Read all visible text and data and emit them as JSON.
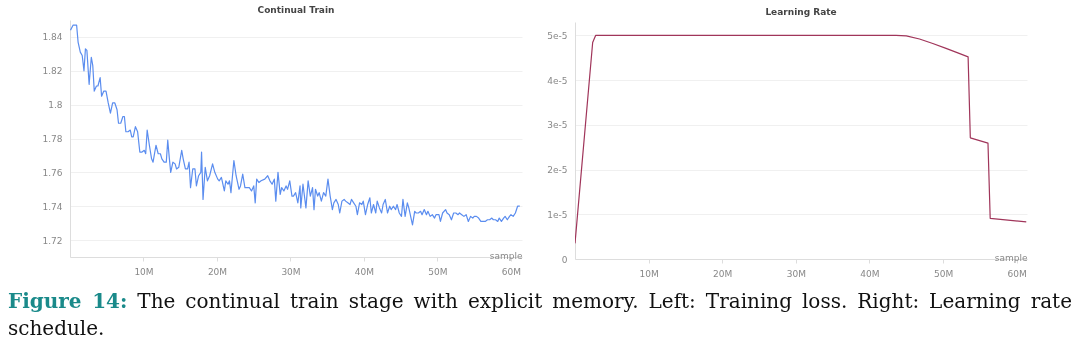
{
  "chart_data": [
    {
      "type": "line",
      "title": "Continual Train",
      "xlabel": "sample",
      "grid": "y",
      "annotations": [
        "Figure 14: The continual train stage with explicit memory. Left: Training loss. Right: Learning rate schedule."
      ],
      "xlim": [
        0,
        61.5
      ],
      "xticks": [
        {
          "value": 10,
          "label": "10M"
        },
        {
          "value": 20,
          "label": "20M"
        },
        {
          "value": 30,
          "label": "30M"
        },
        {
          "value": 40,
          "label": "40M"
        },
        {
          "value": 50,
          "label": "50M"
        },
        {
          "value": 60,
          "label": "60M"
        }
      ],
      "ylim": [
        1.71,
        1.85
      ],
      "yticks": [
        1.72,
        1.74,
        1.76,
        1.78,
        1.8,
        1.82,
        1.84
      ],
      "series": [
        {
          "color": "#5b8def",
          "x": [
            0.07,
            0.43,
            0.9,
            1.1,
            1.4,
            1.66,
            1.9,
            2.1,
            2.3,
            2.6,
            2.9,
            3.1,
            3.3,
            3.6,
            3.8,
            4.1,
            4.3,
            4.6,
            4.9,
            5.2,
            5.5,
            5.8,
            6.1,
            6.4,
            6.6,
            6.9,
            7.2,
            7.4,
            7.6,
            7.9,
            8.2,
            8.4,
            8.6,
            8.9,
            9.2,
            9.5,
            9.8,
            10.1,
            10.3,
            10.5,
            10.8,
            11.1,
            11.3,
            11.7,
            12.0,
            12.3,
            12.5,
            12.8,
            13.1,
            13.3,
            13.5,
            13.7,
            14.0,
            14.3,
            14.5,
            14.8,
            15.2,
            15.4,
            15.7,
            16.0,
            16.2,
            16.4,
            16.7,
            17.0,
            17.2,
            17.5,
            17.8,
            17.9,
            18.1,
            18.4,
            18.7,
            19.0,
            19.4,
            19.7,
            20.1,
            20.3,
            20.6,
            21.0,
            21.2,
            21.5,
            21.7,
            21.9,
            22.3,
            22.6,
            23.0,
            23.2,
            23.5,
            23.8,
            24.2,
            24.4,
            24.7,
            25.0,
            25.2,
            25.4,
            25.7,
            26.0,
            26.5,
            26.9,
            27.2,
            27.5,
            27.8,
            28.0,
            28.3,
            28.6,
            28.8,
            29.1,
            29.4,
            29.6,
            29.9,
            30.2,
            30.4,
            30.7,
            31.0,
            31.3,
            31.4,
            31.7,
            32.1,
            32.4,
            32.7,
            33.0,
            33.2,
            33.4,
            33.7,
            33.9,
            34.2,
            34.5,
            34.8,
            35.1,
            35.4,
            35.7,
            35.9,
            36.2,
            36.5,
            36.7,
            37.0,
            37.3,
            37.5,
            37.8,
            38.1,
            38.3,
            38.6,
            38.9,
            39.1,
            39.4,
            39.7,
            39.9,
            40.2,
            40.5,
            40.8,
            41.0,
            41.3,
            41.6,
            41.8,
            42.1,
            42.4,
            42.6,
            42.9,
            43.2,
            43.5,
            43.7,
            44.0,
            44.3,
            44.5,
            44.8,
            45.1,
            45.3,
            45.6,
            45.9,
            46.1,
            46.4,
            46.6,
            46.9,
            47.1,
            47.4,
            47.7,
            47.9,
            48.2,
            48.5,
            48.7,
            49.0,
            49.3,
            49.6,
            49.8,
            50.2,
            50.4,
            50.7,
            51.1,
            51.3,
            51.6,
            51.9,
            52.2,
            52.5,
            52.8,
            53.0,
            53.3,
            53.6,
            53.9,
            54.2,
            54.5,
            54.8,
            55.0,
            55.3,
            55.6,
            55.9,
            56.1,
            56.5,
            56.8,
            57.1,
            57.4,
            57.6,
            57.9,
            58.2,
            58.4,
            58.7,
            59.0,
            59.2,
            59.5,
            59.8,
            60.0,
            60.3,
            60.6,
            60.9,
            61.2
          ],
          "values": [
            1.844,
            1.847,
            1.847,
            1.837,
            1.831,
            1.829,
            1.82,
            1.833,
            1.832,
            1.812,
            1.828,
            1.823,
            1.808,
            1.811,
            1.811,
            1.816,
            1.805,
            1.808,
            1.808,
            1.801,
            1.795,
            1.801,
            1.801,
            1.797,
            1.789,
            1.789,
            1.793,
            1.793,
            1.784,
            1.784,
            1.785,
            1.781,
            1.781,
            1.787,
            1.784,
            1.772,
            1.772,
            1.773,
            1.771,
            1.785,
            1.776,
            1.768,
            1.766,
            1.776,
            1.771,
            1.771,
            1.768,
            1.766,
            1.766,
            1.779,
            1.769,
            1.76,
            1.766,
            1.765,
            1.762,
            1.763,
            1.773,
            1.768,
            1.762,
            1.762,
            1.766,
            1.751,
            1.762,
            1.762,
            1.752,
            1.758,
            1.76,
            1.772,
            1.744,
            1.763,
            1.755,
            1.758,
            1.765,
            1.76,
            1.756,
            1.755,
            1.757,
            1.749,
            1.755,
            1.753,
            1.755,
            1.748,
            1.767,
            1.758,
            1.75,
            1.752,
            1.759,
            1.751,
            1.751,
            1.751,
            1.749,
            1.752,
            1.742,
            1.756,
            1.754,
            1.755,
            1.756,
            1.758,
            1.755,
            1.753,
            1.756,
            1.743,
            1.76,
            1.747,
            1.751,
            1.749,
            1.752,
            1.75,
            1.755,
            1.746,
            1.746,
            1.748,
            1.742,
            1.752,
            1.739,
            1.753,
            1.739,
            1.755,
            1.746,
            1.751,
            1.738,
            1.75,
            1.746,
            1.748,
            1.743,
            1.748,
            1.746,
            1.756,
            1.746,
            1.738,
            1.742,
            1.744,
            1.741,
            1.736,
            1.743,
            1.744,
            1.743,
            1.742,
            1.741,
            1.744,
            1.742,
            1.74,
            1.735,
            1.742,
            1.741,
            1.743,
            1.735,
            1.741,
            1.745,
            1.736,
            1.741,
            1.736,
            1.743,
            1.739,
            1.736,
            1.741,
            1.744,
            1.736,
            1.74,
            1.738,
            1.74,
            1.738,
            1.741,
            1.736,
            1.734,
            1.744,
            1.734,
            1.742,
            1.739,
            1.733,
            1.729,
            1.737,
            1.736,
            1.736,
            1.737,
            1.735,
            1.738,
            1.735,
            1.737,
            1.734,
            1.735,
            1.733,
            1.735,
            1.735,
            1.731,
            1.736,
            1.738,
            1.736,
            1.735,
            1.732,
            1.736,
            1.736,
            1.735,
            1.736,
            1.735,
            1.734,
            1.735,
            1.731,
            1.734,
            1.733,
            1.734,
            1.734,
            1.733,
            1.731,
            1.731,
            1.731,
            1.732,
            1.732,
            1.733,
            1.732,
            1.732,
            1.731,
            1.733,
            1.731,
            1.733,
            1.734,
            1.732,
            1.734,
            1.735,
            1.734,
            1.736,
            1.74,
            1.74
          ]
        }
      ]
    },
    {
      "type": "line",
      "title": "Learning Rate",
      "xlabel": "sample",
      "grid": "y",
      "xlim": [
        0,
        61.4
      ],
      "xticks": [
        {
          "value": 10,
          "label": "10M"
        },
        {
          "value": 20,
          "label": "20M"
        },
        {
          "value": 30,
          "label": "30M"
        },
        {
          "value": 40,
          "label": "40M"
        },
        {
          "value": 50,
          "label": "50M"
        },
        {
          "value": 60,
          "label": "60M"
        }
      ],
      "ylim": [
        0,
        5.3e-05
      ],
      "yticks": [
        0,
        {
          "value": 1e-05,
          "label": "1e-5"
        },
        {
          "value": 2e-05,
          "label": "2e-5"
        },
        {
          "value": 3e-05,
          "label": "3e-5"
        },
        {
          "value": 4e-05,
          "label": "4e-5"
        },
        {
          "value": 5e-05,
          "label": "5e-5"
        }
      ],
      "series": [
        {
          "color": "#a0355a",
          "x": [
            0,
            2.4,
            2.8,
            43.6,
            45.0,
            46.8,
            48.6,
            50.4,
            52.0,
            53.4,
            53.7,
            56.1,
            56.4,
            61.3
          ],
          "values": [
            3.5e-06,
            4.84e-05,
            5e-05,
            5e-05,
            4.99e-05,
            4.92e-05,
            4.82e-05,
            4.71e-05,
            4.61e-05,
            4.52e-05,
            2.71e-05,
            2.59e-05,
            9.1e-06,
            8.3e-06
          ]
        }
      ]
    }
  ]
}
